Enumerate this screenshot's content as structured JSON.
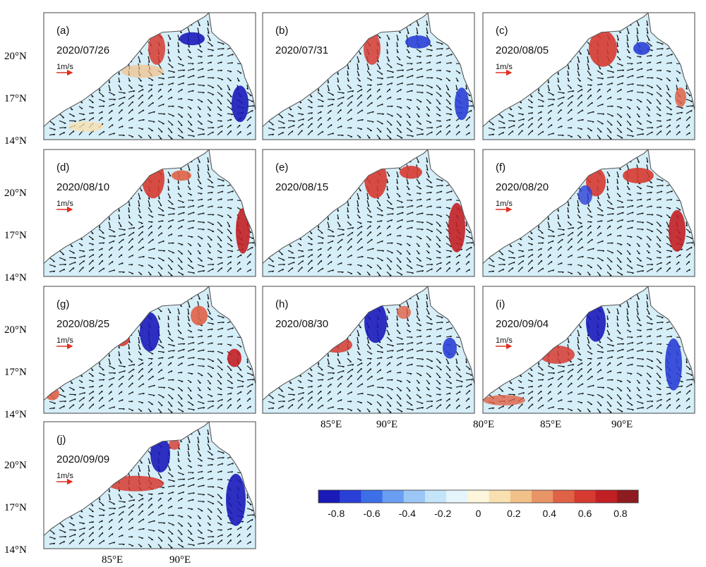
{
  "panels": [
    {
      "letter": "(a)",
      "date": "2020/07/26",
      "scale_label": "1m/s"
    },
    {
      "letter": "(b)",
      "date": "2020/07/31",
      "scale_label": "1m/s"
    },
    {
      "letter": "(c)",
      "date": "2020/08/05",
      "scale_label": "1m/s"
    },
    {
      "letter": "(d)",
      "date": "2020/08/10",
      "scale_label": "1m/s"
    },
    {
      "letter": "(e)",
      "date": "2020/08/15",
      "scale_label": "1m/s"
    },
    {
      "letter": "(f)",
      "date": "2020/08/20",
      "scale_label": "1m/s"
    },
    {
      "letter": "(g)",
      "date": "2020/08/25",
      "scale_label": "1m/s"
    },
    {
      "letter": "(h)",
      "date": "2020/08/30",
      "scale_label": "1m/s"
    },
    {
      "letter": "(i)",
      "date": "2020/09/04",
      "scale_label": "1m/s"
    },
    {
      "letter": "(j)",
      "date": "2020/09/09",
      "scale_label": "1m/s"
    }
  ],
  "lat_labels": [
    "20°N",
    "17°N",
    "14°N"
  ],
  "lon_labels_bottom": [
    "85°E",
    "90°E",
    "80°E"
  ],
  "colorbar": {
    "ticks": [
      "-0.8",
      "-0.6",
      "-0.4",
      "-0.2",
      "0",
      "0.2",
      "0.4",
      "0.6",
      "0.8"
    ],
    "colors": [
      "#1a1ab8",
      "#2a3fd6",
      "#3d6fe8",
      "#6a9ef2",
      "#9cc6f6",
      "#c4e4f9",
      "#e6f5fc",
      "#fdf6dc",
      "#f9e0b0",
      "#f2c089",
      "#e99467",
      "#e06246",
      "#d63a30",
      "#c21f24",
      "#8e1b20"
    ]
  }
}
